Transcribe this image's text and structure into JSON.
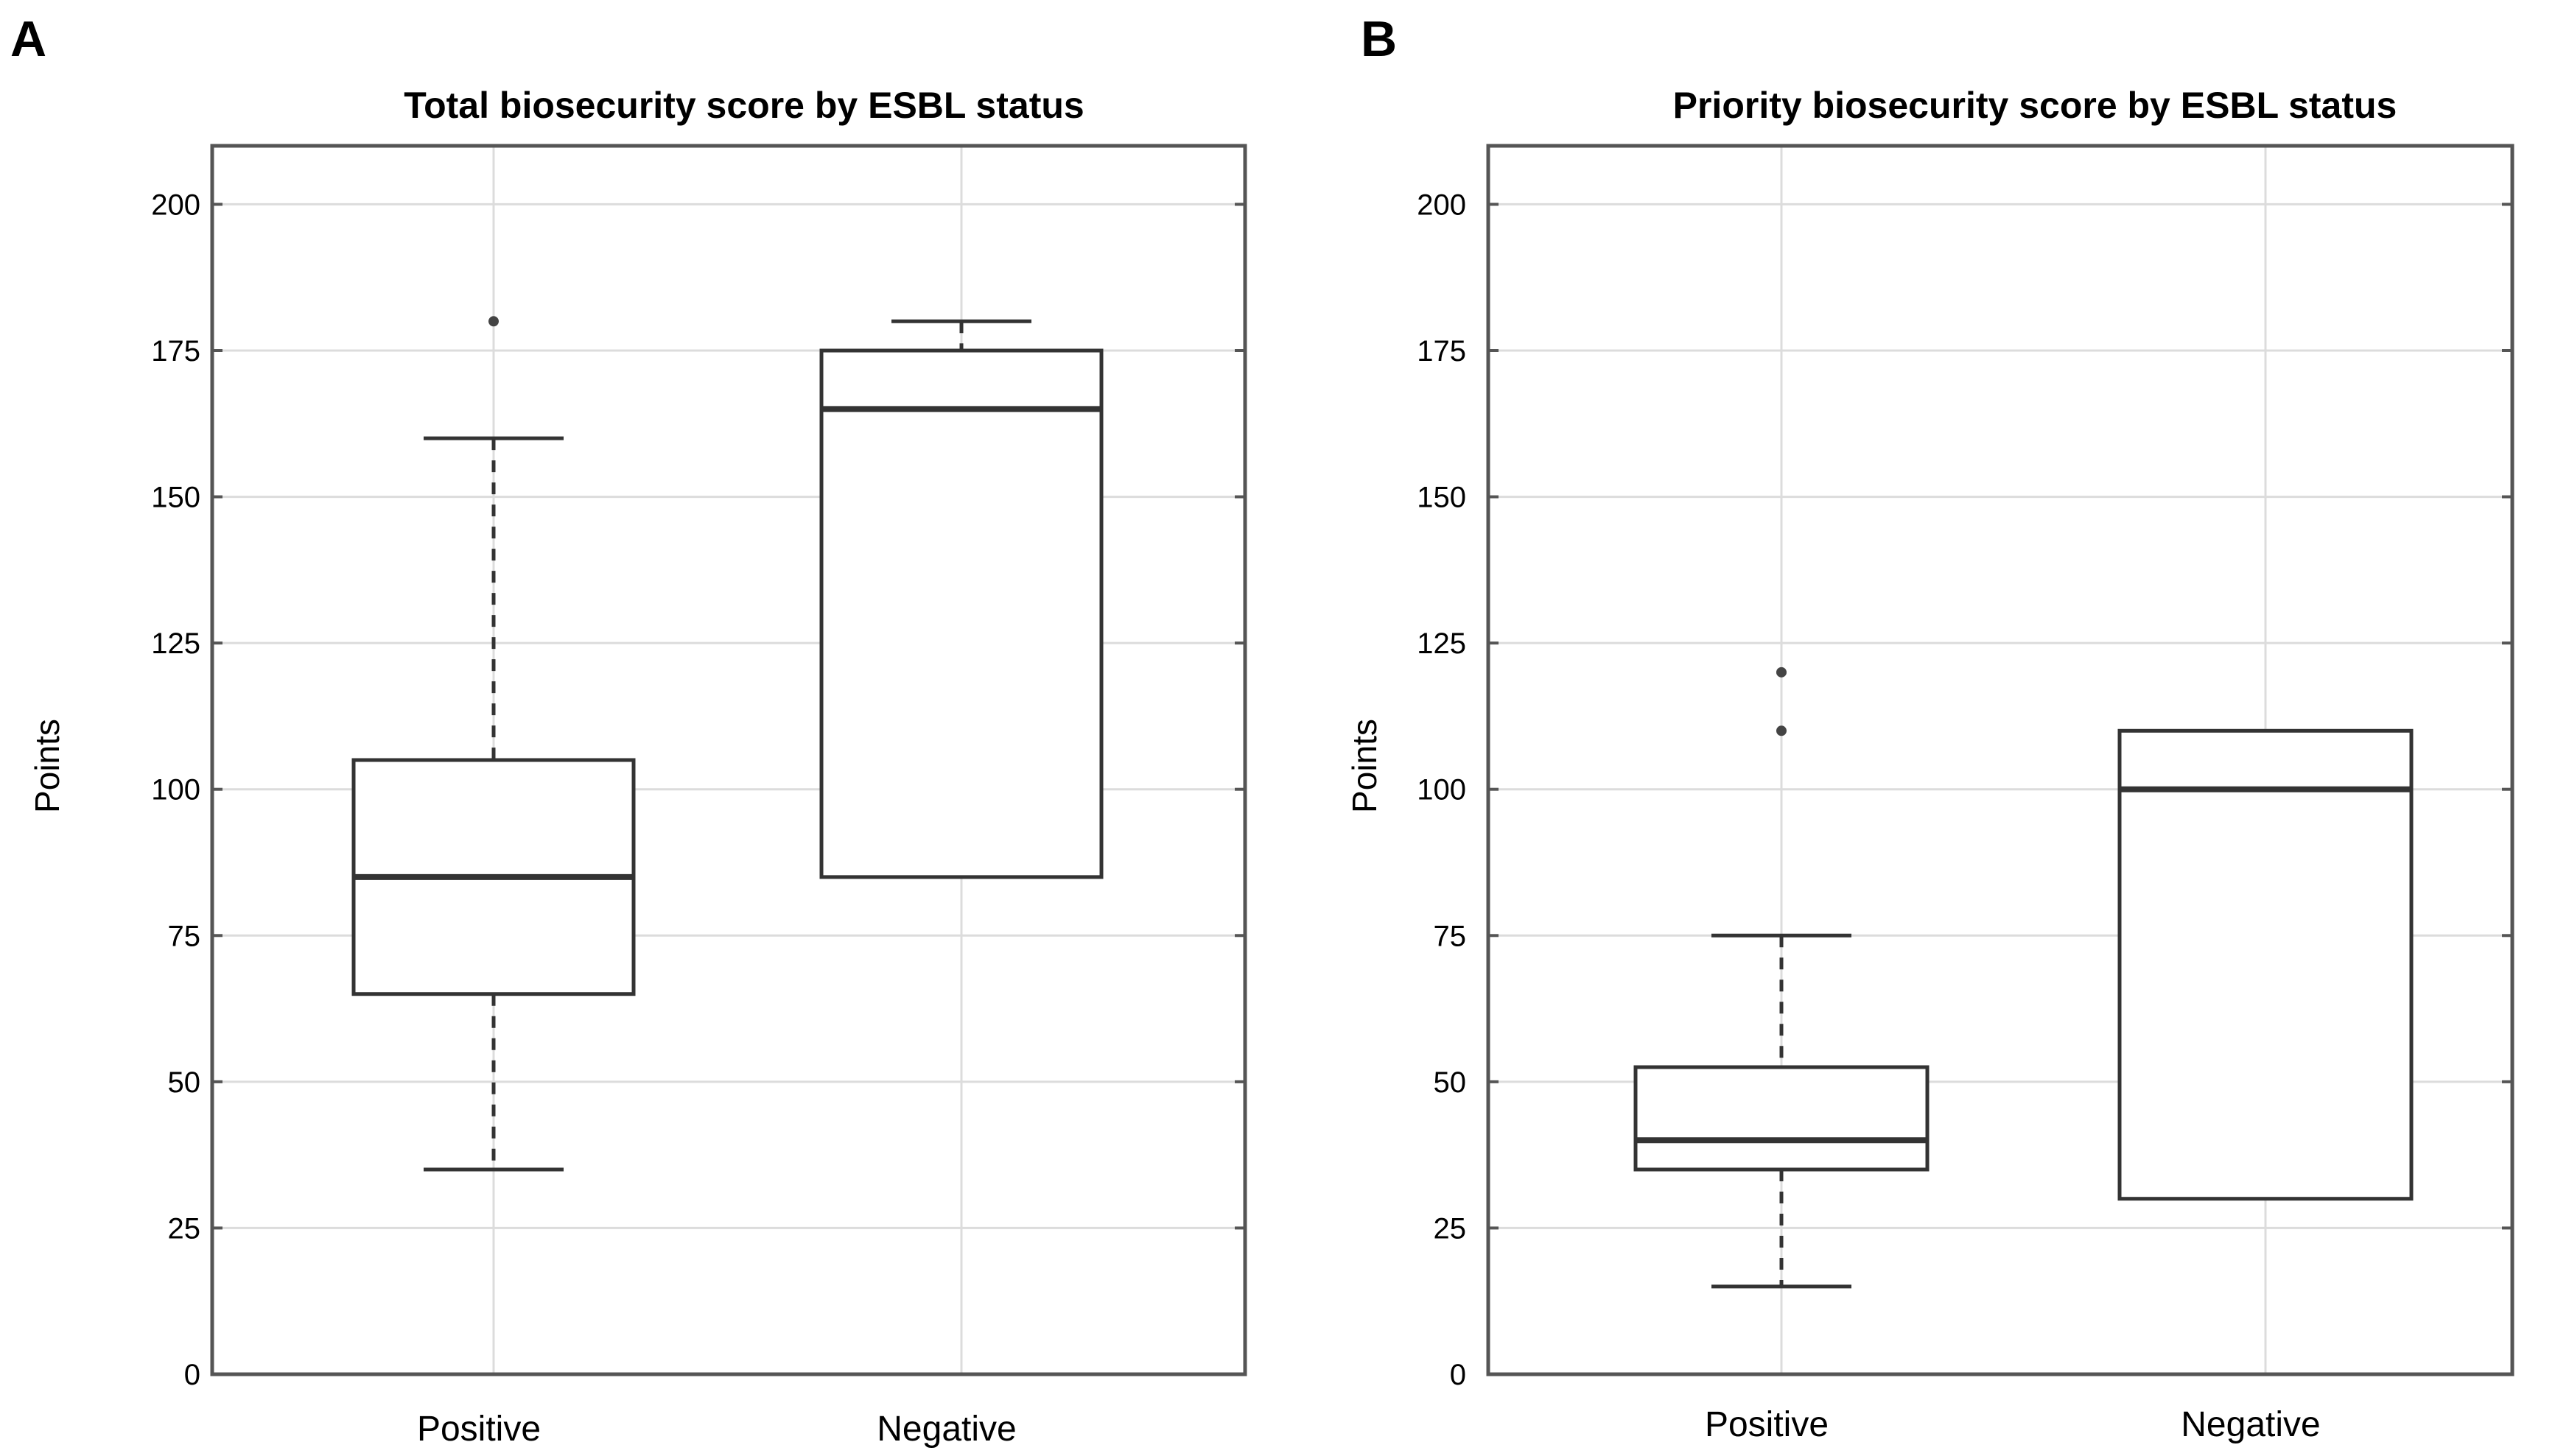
{
  "chart_data": [
    {
      "type": "box",
      "panel_label": "A",
      "title": "Total biosecurity score by ESBL status",
      "ylabel": "Points",
      "xlabel": "",
      "ylim": [
        0,
        210
      ],
      "yticks": [
        0,
        25,
        50,
        75,
        100,
        125,
        150,
        175,
        200
      ],
      "grid": true,
      "categories": [
        "Positive",
        "Negative"
      ],
      "boxes": [
        {
          "category": "Positive",
          "whisker_low": 35,
          "q1": 65,
          "median": 85,
          "q3": 105,
          "whisker_high": 160,
          "outliers": [
            180
          ]
        },
        {
          "category": "Negative",
          "whisker_low": 85,
          "q1": 85,
          "median": 165,
          "q3": 175,
          "whisker_high": 180,
          "outliers": []
        }
      ]
    },
    {
      "type": "box",
      "panel_label": "B",
      "title": "Priority biosecurity score by ESBL status",
      "ylabel": "Points",
      "xlabel": "",
      "ylim": [
        0,
        210
      ],
      "yticks": [
        0,
        25,
        50,
        75,
        100,
        125,
        150,
        175,
        200
      ],
      "grid": true,
      "categories": [
        "Positive",
        "Negative"
      ],
      "boxes": [
        {
          "category": "Positive",
          "whisker_low": 15,
          "q1": 35,
          "median": 40,
          "q3": 52.5,
          "whisker_high": 75,
          "outliers": [
            110,
            120
          ]
        },
        {
          "category": "Negative",
          "whisker_low": 30,
          "q1": 30,
          "median": 100,
          "q3": 110,
          "whisker_high": 110,
          "outliers": []
        }
      ]
    }
  ]
}
